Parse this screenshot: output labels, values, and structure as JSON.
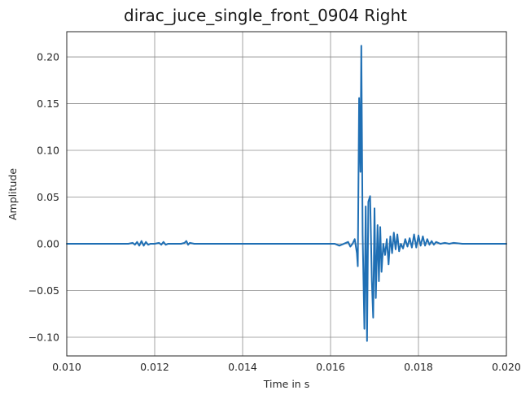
{
  "chart_data": {
    "type": "line",
    "title": "dirac_juce_single_front_0904 Right",
    "xlabel": "Time in s",
    "ylabel": "Amplitude",
    "xlim": [
      0.01,
      0.02
    ],
    "ylim": [
      -0.12,
      0.227
    ],
    "grid": true,
    "x_ticks": [
      0.01,
      0.012,
      0.014,
      0.016,
      0.018,
      0.02
    ],
    "x_tick_labels": [
      "0.010",
      "0.012",
      "0.014",
      "0.016",
      "0.018",
      "0.020"
    ],
    "y_ticks": [
      -0.1,
      -0.05,
      0.0,
      0.05,
      0.1,
      0.15,
      0.2
    ],
    "y_tick_labels": [
      "−0.10",
      "−0.05",
      "0.00",
      "0.05",
      "0.10",
      "0.15",
      "0.20"
    ],
    "colors": {
      "line": "#1f6fb4"
    },
    "series": [
      {
        "x": [
          0.01,
          0.011,
          0.0112,
          0.0114,
          0.0115,
          0.01155,
          0.0116,
          0.01165,
          0.0117,
          0.01175,
          0.0118,
          0.01185,
          0.0119,
          0.012,
          0.0121,
          0.01215,
          0.0122,
          0.01225,
          0.0123,
          0.0126,
          0.01268,
          0.01272,
          0.01276,
          0.0128,
          0.0129,
          0.0135,
          0.0145,
          0.0155,
          0.0159,
          0.016,
          0.0161,
          0.0162,
          0.0163,
          0.0164,
          0.01645,
          0.0165,
          0.01655,
          0.0166,
          0.01662,
          0.01665,
          0.01668,
          0.0167,
          0.01673,
          0.01677,
          0.0168,
          0.01683,
          0.01686,
          0.0169,
          0.01694,
          0.01697,
          0.017,
          0.01703,
          0.01707,
          0.0171,
          0.01713,
          0.01716,
          0.0172,
          0.01724,
          0.01728,
          0.01732,
          0.01736,
          0.0174,
          0.01744,
          0.01748,
          0.01752,
          0.01756,
          0.0176,
          0.01765,
          0.0177,
          0.01775,
          0.0178,
          0.01785,
          0.0179,
          0.01795,
          0.018,
          0.01805,
          0.0181,
          0.01815,
          0.0182,
          0.01825,
          0.0183,
          0.01835,
          0.0184,
          0.0185,
          0.0186,
          0.0187,
          0.0188,
          0.019,
          0.0195,
          0.02
        ],
        "y": [
          0.0,
          0.0,
          0.0,
          0.0,
          0.001,
          -0.001,
          0.002,
          -0.002,
          0.003,
          -0.002,
          0.002,
          -0.001,
          0.0,
          0.0,
          0.001,
          -0.001,
          0.002,
          -0.001,
          0.0,
          0.0,
          0.001,
          0.003,
          -0.001,
          0.001,
          0.0,
          0.0,
          0.0,
          0.0,
          0.0,
          0.0,
          0.0,
          -0.002,
          0.0,
          0.002,
          -0.003,
          0.0,
          0.005,
          -0.01,
          -0.024,
          0.156,
          0.077,
          0.212,
          0.01,
          -0.091,
          0.04,
          -0.104,
          0.045,
          0.051,
          -0.04,
          -0.079,
          0.038,
          -0.058,
          0.02,
          -0.04,
          0.018,
          -0.03,
          0.0,
          -0.012,
          0.005,
          -0.022,
          0.008,
          -0.01,
          0.012,
          -0.006,
          0.01,
          -0.008,
          0.0,
          -0.005,
          0.005,
          -0.003,
          0.006,
          -0.004,
          0.01,
          -0.004,
          0.009,
          -0.002,
          0.008,
          -0.002,
          0.005,
          -0.001,
          0.003,
          -0.001,
          0.002,
          0.0,
          0.001,
          0.0,
          0.001,
          0.0,
          0.0,
          0.0
        ]
      }
    ]
  }
}
